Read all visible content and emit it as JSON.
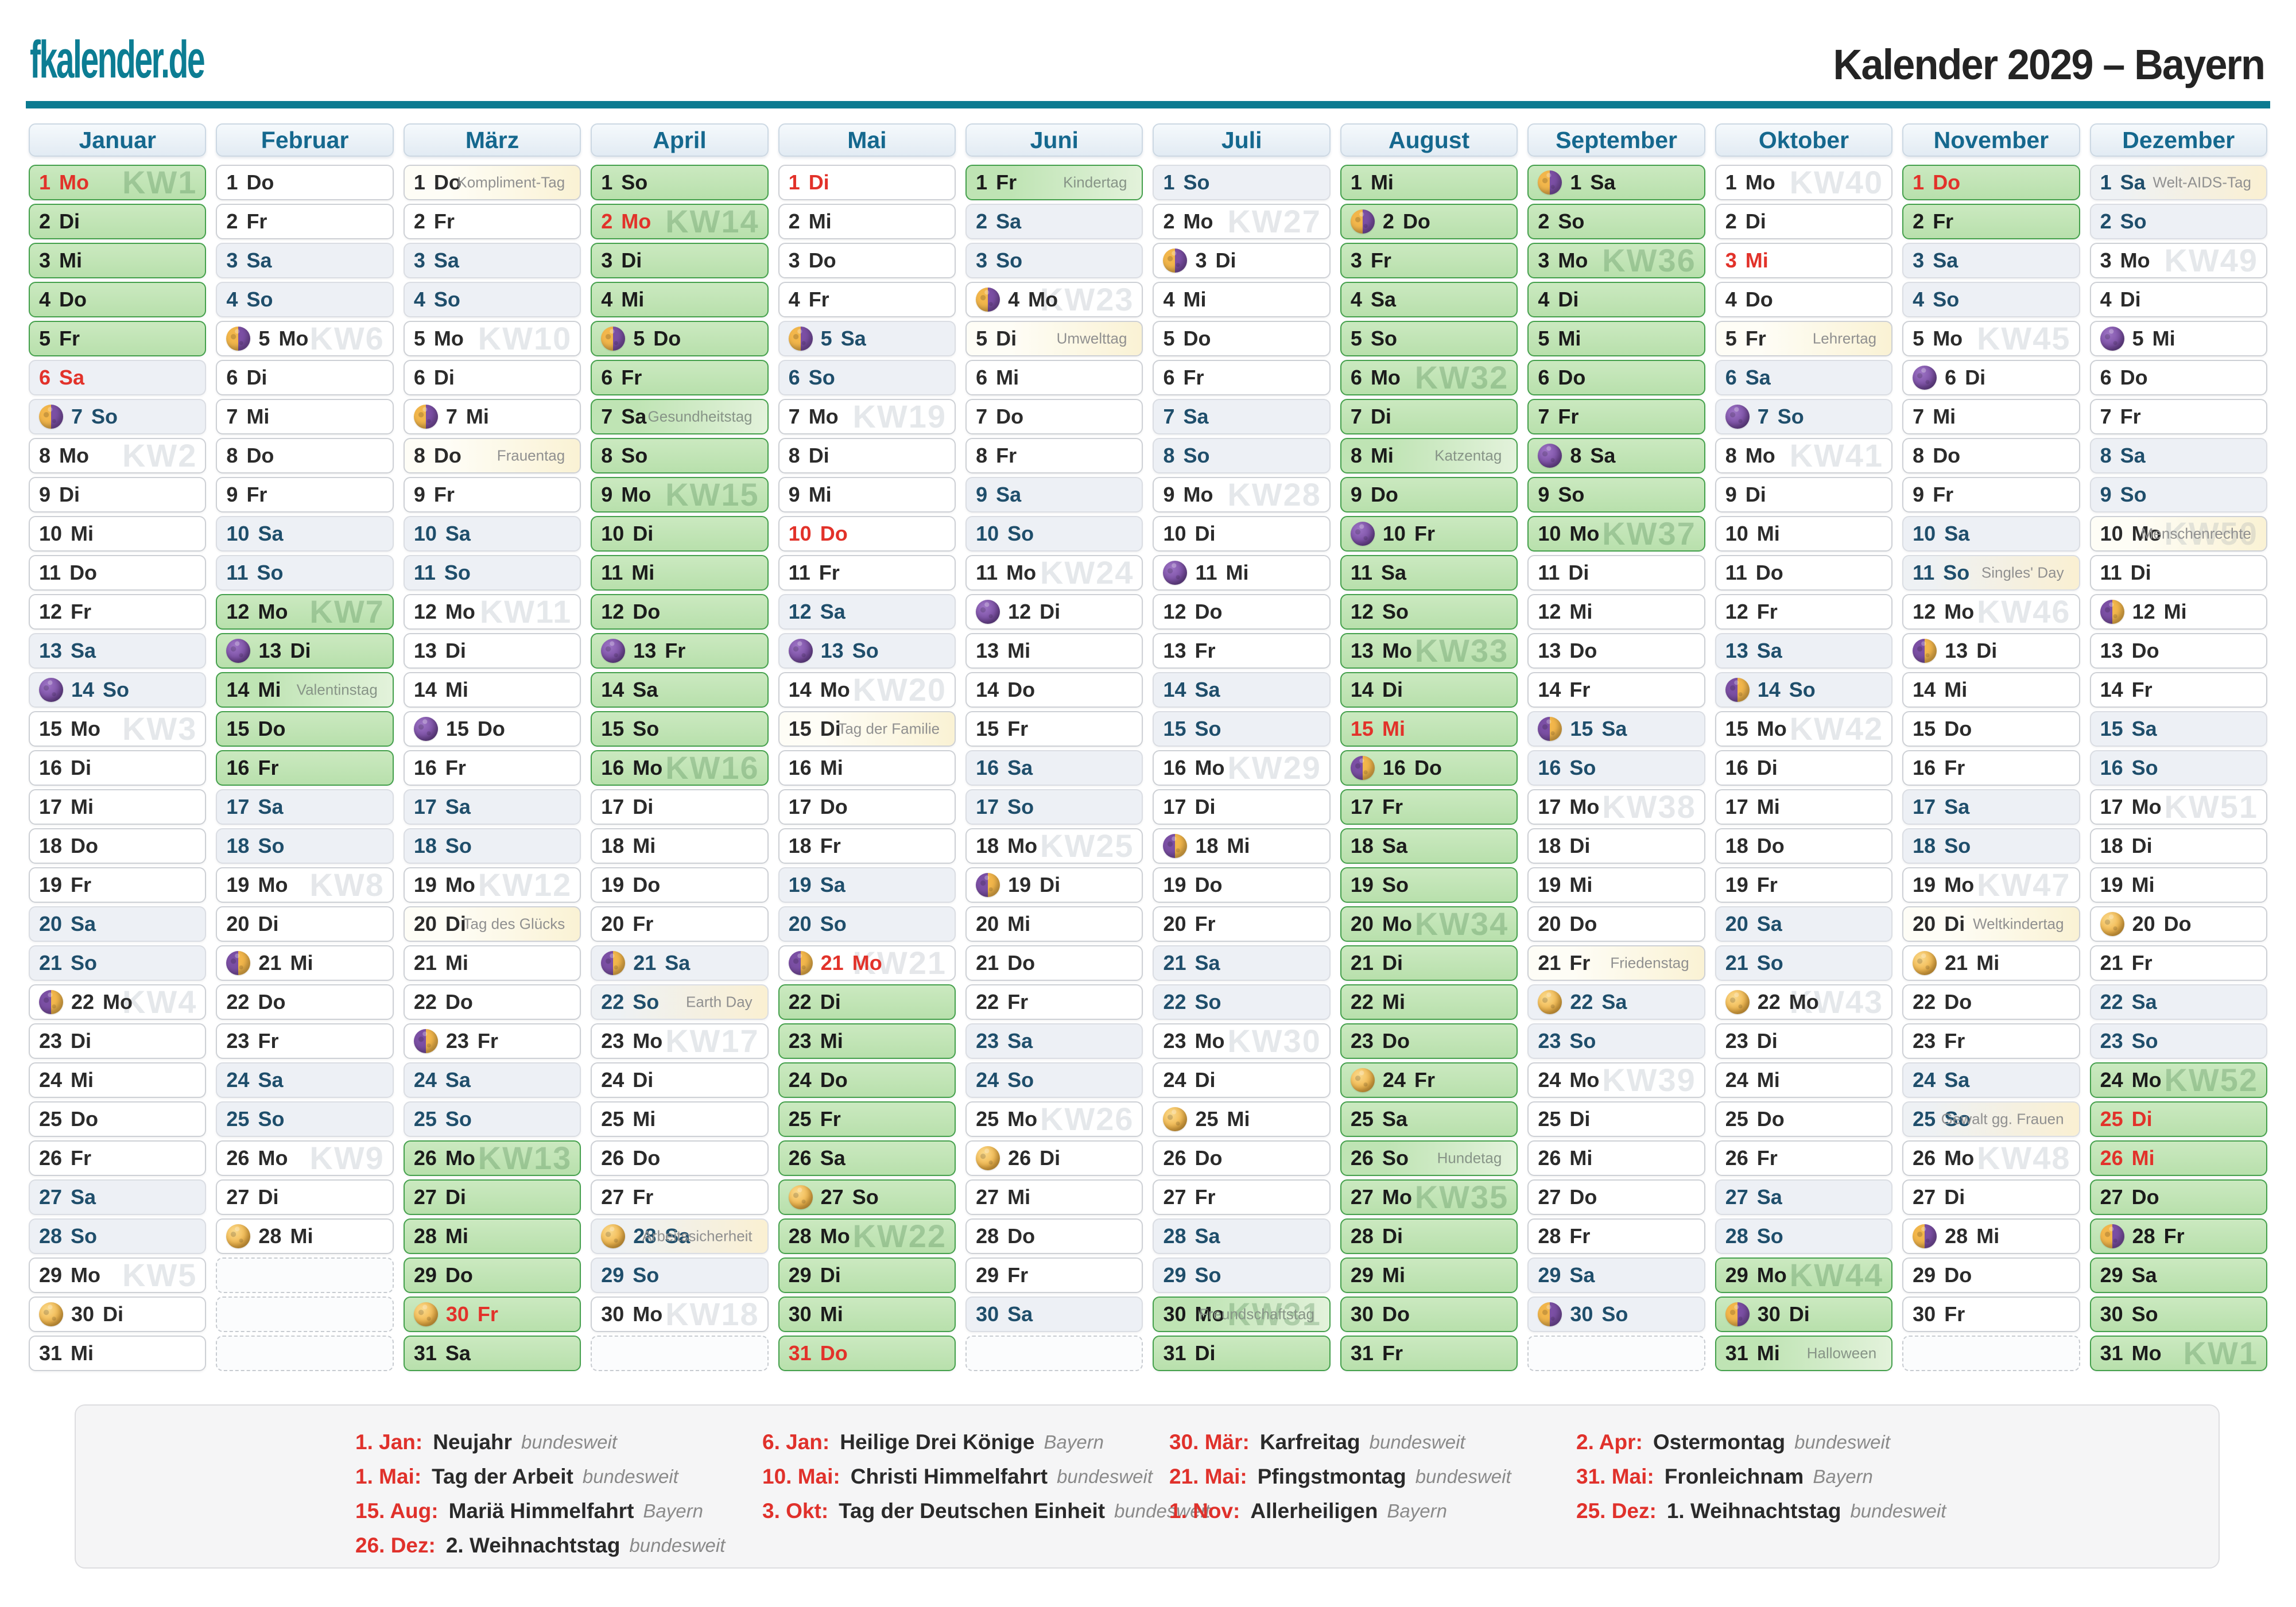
{
  "header": {
    "logo": "fkalender.de",
    "title": "Kalender 2029 – Bayern"
  },
  "weekdays": [
    "Mo",
    "Di",
    "Mi",
    "Do",
    "Fr",
    "Sa",
    "So"
  ],
  "colors": {
    "accent_teal": "#0b7a90",
    "month_header_text": "#15688e",
    "holiday_red": "#e2322a",
    "ferien_green_fill": "#c2e5b6",
    "ferien_green_border": "#44a04c",
    "weekend_fill": "#edf0f5",
    "weekend_text": "#1f4e6b",
    "label_yellow_fill": "#faf2d4",
    "kw_watermark": "#e6e9ec"
  },
  "months": [
    {
      "name": "Januar",
      "days": 31,
      "start": 0,
      "ferien": [
        [
          1,
          5
        ]
      ],
      "holidays": [
        1,
        6
      ],
      "kw": {
        "1": "KW1",
        "8": "KW2",
        "15": "KW3",
        "22": "KW4",
        "29": "KW5"
      },
      "moons": {
        "7": "last-quarter",
        "14": "new",
        "22": "first-quarter",
        "30": "full"
      },
      "labels": {}
    },
    {
      "name": "Februar",
      "days": 28,
      "start": 3,
      "ferien": [
        [
          12,
          16
        ]
      ],
      "holidays": [],
      "kw": {
        "5": "KW6",
        "12": "KW7",
        "19": "KW8",
        "26": "KW9"
      },
      "moons": {
        "5": "last-quarter",
        "13": "new",
        "21": "first-quarter",
        "28": "full"
      },
      "labels": {
        "14": "Valentinstag"
      }
    },
    {
      "name": "März",
      "days": 31,
      "start": 3,
      "ferien": [
        [
          26,
          31
        ]
      ],
      "holidays": [
        30
      ],
      "kw": {
        "5": "KW10",
        "12": "KW11",
        "19": "KW12",
        "26": "KW13"
      },
      "moons": {
        "7": "last-quarter",
        "15": "new",
        "23": "first-quarter",
        "30": "full"
      },
      "labels": {
        "1": "Kompliment-Tag",
        "8": "Frauentag",
        "20": "Tag des Glücks"
      }
    },
    {
      "name": "April",
      "days": 30,
      "start": 6,
      "ferien": [
        [
          1,
          16
        ]
      ],
      "holidays": [
        2
      ],
      "kw": {
        "2": "KW14",
        "9": "KW15",
        "16": "KW16",
        "23": "KW17",
        "30": "KW18"
      },
      "moons": {
        "5": "last-quarter",
        "13": "new",
        "21": "first-quarter",
        "28": "full"
      },
      "labels": {
        "7": "Gesundheitstag",
        "22": "Earth Day",
        "28": "Arbeitssicherheit"
      }
    },
    {
      "name": "Mai",
      "days": 31,
      "start": 1,
      "ferien": [
        [
          22,
          31
        ]
      ],
      "holidays": [
        1,
        10,
        21,
        31
      ],
      "kw": {
        "7": "KW19",
        "14": "KW20",
        "21": "KW21",
        "28": "KW22"
      },
      "moons": {
        "5": "last-quarter",
        "13": "new",
        "21": "first-quarter",
        "27": "full"
      },
      "labels": {
        "15": "Tag der Familie"
      }
    },
    {
      "name": "Juni",
      "days": 30,
      "start": 4,
      "ferien": [
        [
          1,
          1
        ]
      ],
      "holidays": [],
      "kw": {
        "4": "KW23",
        "11": "KW24",
        "18": "KW25",
        "25": "KW26"
      },
      "moons": {
        "4": "last-quarter",
        "12": "new",
        "19": "first-quarter",
        "26": "full"
      },
      "labels": {
        "1": "Kindertag",
        "5": "Umwelttag"
      }
    },
    {
      "name": "Juli",
      "days": 31,
      "start": 6,
      "ferien": [
        [
          30,
          31
        ]
      ],
      "holidays": [],
      "kw": {
        "2": "KW27",
        "9": "KW28",
        "16": "KW29",
        "23": "KW30",
        "30": "KW31"
      },
      "moons": {
        "3": "last-quarter",
        "11": "new",
        "18": "first-quarter",
        "25": "full"
      },
      "labels": {
        "30": "Freundschaftstag"
      }
    },
    {
      "name": "August",
      "days": 31,
      "start": 2,
      "ferien": [
        [
          1,
          31
        ]
      ],
      "holidays": [
        15
      ],
      "kw": {
        "6": "KW32",
        "13": "KW33",
        "20": "KW34",
        "27": "KW35"
      },
      "moons": {
        "2": "last-quarter",
        "10": "new",
        "16": "first-quarter",
        "24": "full"
      },
      "labels": {
        "8": "Katzentag",
        "26": "Hundetag"
      }
    },
    {
      "name": "September",
      "days": 30,
      "start": 5,
      "ferien": [
        [
          1,
          10
        ]
      ],
      "holidays": [],
      "kw": {
        "3": "KW36",
        "10": "KW37",
        "17": "KW38",
        "24": "KW39"
      },
      "moons": {
        "1": "last-quarter",
        "8": "new",
        "15": "first-quarter",
        "22": "full",
        "30": "last-quarter"
      },
      "labels": {
        "21": "Friedenstag"
      }
    },
    {
      "name": "Oktober",
      "days": 31,
      "start": 0,
      "ferien": [
        [
          29,
          31
        ]
      ],
      "holidays": [
        3
      ],
      "kw": {
        "1": "KW40",
        "8": "KW41",
        "15": "KW42",
        "22": "KW43",
        "29": "KW44"
      },
      "moons": {
        "7": "new",
        "14": "first-quarter",
        "22": "full",
        "30": "last-quarter"
      },
      "labels": {
        "5": "Lehrertag",
        "31": "Halloween"
      }
    },
    {
      "name": "November",
      "days": 30,
      "start": 3,
      "ferien": [
        [
          1,
          2
        ]
      ],
      "holidays": [
        1
      ],
      "kw": {
        "5": "KW45",
        "12": "KW46",
        "19": "KW47",
        "26": "KW48"
      },
      "moons": {
        "6": "new",
        "13": "first-quarter",
        "21": "full",
        "28": "last-quarter"
      },
      "labels": {
        "11": "Singles' Day",
        "20": "Weltkindertag",
        "25": "Gewalt gg. Frauen"
      }
    },
    {
      "name": "Dezember",
      "days": 31,
      "start": 5,
      "ferien": [
        [
          24,
          31
        ]
      ],
      "holidays": [
        25,
        26
      ],
      "kw": {
        "3": "KW49",
        "10": "KW50",
        "17": "KW51",
        "24": "KW52",
        "31": "KW1"
      },
      "moons": {
        "5": "new",
        "12": "first-quarter",
        "20": "full",
        "28": "last-quarter"
      },
      "labels": {
        "1": "Welt-AIDS-Tag",
        "10": "Menschenrechte"
      }
    }
  ],
  "legend": {
    "columns": [
      [
        {
          "date": "1. Jan:",
          "name": "Neujahr",
          "region": "bundesweit"
        },
        {
          "date": "1. Mai:",
          "name": "Tag der Arbeit",
          "region": "bundesweit"
        },
        {
          "date": "15. Aug:",
          "name": "Mariä Himmelfahrt",
          "region": "Bayern"
        },
        {
          "date": "26. Dez:",
          "name": "2. Weihnachtstag",
          "region": "bundesweit"
        }
      ],
      [
        {
          "date": "6. Jan:",
          "name": "Heilige Drei Könige",
          "region": "Bayern"
        },
        {
          "date": "10. Mai:",
          "name": "Christi Himmelfahrt",
          "region": "bundesweit"
        },
        {
          "date": "3. Okt:",
          "name": "Tag der Deutschen Einheit",
          "region": "bundesweit"
        }
      ],
      [
        {
          "date": "30. Mär:",
          "name": "Karfreitag",
          "region": "bundesweit"
        },
        {
          "date": "21. Mai:",
          "name": "Pfingstmontag",
          "region": "bundesweit"
        },
        {
          "date": "1. Nov:",
          "name": "Allerheiligen",
          "region": "Bayern"
        }
      ],
      [
        {
          "date": "2. Apr:",
          "name": "Ostermontag",
          "region": "bundesweit"
        },
        {
          "date": "31. Mai:",
          "name": "Fronleichnam",
          "region": "Bayern"
        },
        {
          "date": "25. Dez:",
          "name": "1. Weihnachtstag",
          "region": "bundesweit"
        }
      ]
    ]
  }
}
